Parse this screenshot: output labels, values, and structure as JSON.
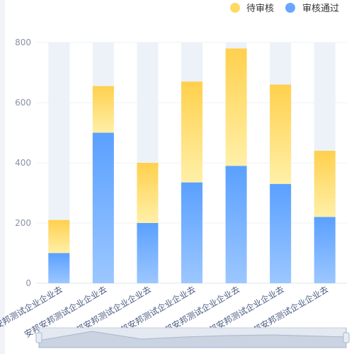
{
  "chart_data": {
    "type": "bar",
    "stacked": true,
    "categories": [
      "安邦测试企业企业去",
      "安邦安邦测试企业企业去",
      "安邦安邦安邦测试企业企业去",
      "安邦安邦测试企业企业去",
      "安邦安邦测试企业企业去",
      "安邦安邦测试企业企业去",
      "安邦安邦测试企业企业去"
    ],
    "series": [
      {
        "name": "审核通过",
        "values": [
          100,
          500,
          200,
          335,
          390,
          330,
          220
        ]
      },
      {
        "name": "待审核",
        "values": [
          110,
          155,
          200,
          335,
          390,
          330,
          220
        ]
      }
    ],
    "background_max": 800,
    "ylim": [
      0,
      800
    ],
    "yticks": [
      0,
      200,
      400,
      600,
      800
    ],
    "legend_position": "top-right",
    "grid": true,
    "has_data_zoom": true
  },
  "colors": {
    "approved_top": "#5aa0ff",
    "approved_bottom": "#9cc7ff",
    "pending_top": "#ffd04d",
    "pending_bottom": "#fff0a8",
    "background_bar": "#edf2f9",
    "legend_pending": "#ffd966",
    "legend_approved": "#6aa6ff"
  }
}
